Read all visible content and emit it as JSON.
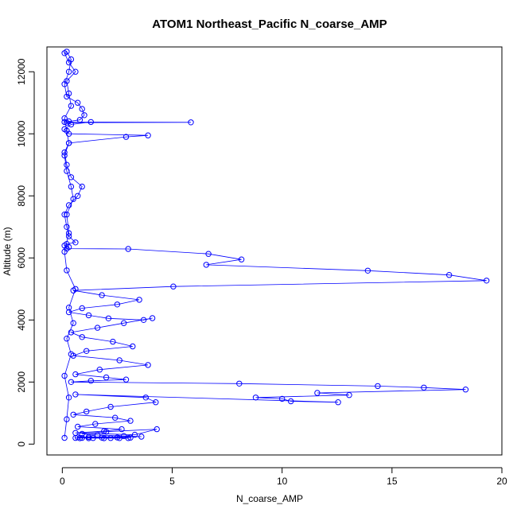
{
  "chart_data": {
    "type": "scatter",
    "title": "ATOM1 Northeast_Pacific N_coarse_AMP",
    "xlabel": "N_coarse_AMP",
    "ylabel": "Altitude (m)",
    "xlim": [
      -0.7,
      20.0
    ],
    "ylim": [
      -350,
      12800
    ],
    "xticks": [
      "0",
      "5",
      "10",
      "15",
      "20"
    ],
    "xtick_values": [
      0,
      5,
      10,
      15,
      20
    ],
    "yticks": [
      "0",
      "2000",
      "4000",
      "6000",
      "8000",
      "10000",
      "12000"
    ],
    "ytick_values": [
      0,
      2000,
      4000,
      6000,
      8000,
      10000,
      12000
    ],
    "grid": false,
    "legend": "none",
    "marker": "open-circle",
    "connected": true,
    "color": "#0000ff",
    "series": [
      {
        "x": [
          0.1,
          0.2,
          0.3,
          0.1,
          0.4,
          0.2,
          0.5,
          0.3,
          0.6,
          0.2,
          0.1,
          0.3,
          0.2,
          0.5,
          0.4,
          0.2,
          0.1,
          0.3,
          0.2,
          0.1,
          0.4,
          0.3,
          0.2,
          0.6,
          0.3,
          0.1,
          0.2,
          0.4,
          0.3,
          0.1,
          0.2,
          0.7,
          0.9,
          1.0,
          0.8,
          0.3,
          0.1,
          5.85,
          0.2,
          1.3,
          0.4,
          0.1,
          0.3,
          3.9,
          2.9,
          0.3,
          0.1,
          0.2,
          0.4,
          0.9,
          0.7,
          0.3,
          0.1,
          0.2,
          0.3,
          0.6,
          0.2,
          0.1,
          0.3,
          0.2,
          3.0,
          6.65,
          8.15,
          6.55,
          13.9,
          17.6,
          19.3,
          5.05,
          0.5,
          1.8,
          3.5,
          2.5,
          0.9,
          0.3,
          1.2,
          2.1,
          3.7,
          4.1,
          2.8,
          1.6,
          0.4,
          0.9,
          2.3,
          3.2,
          1.1,
          0.5,
          2.6,
          3.9,
          1.7,
          0.6,
          2.0,
          2.9,
          1.3,
          0.4,
          8.05,
          14.35,
          16.45,
          18.35,
          11.6,
          13.05,
          8.8,
          10.0,
          10.4,
          12.55,
          0.6,
          3.8,
          4.25,
          2.2,
          1.1,
          0.5,
          2.4,
          3.1,
          1.5,
          0.7,
          2.7,
          1.9,
          0.6,
          3.3,
          4.3,
          2.0,
          0.9,
          1.6,
          2.8,
          3.6,
          1.2,
          0.7,
          2.5,
          3.1,
          1.8,
          0.9,
          0.6,
          1.4,
          2.2,
          3.0,
          2.6,
          1.9,
          1.2,
          0.8
        ],
        "y": [
          200,
          800,
          1500,
          2200,
          2900,
          3400,
          3900,
          4400,
          5000,
          5600,
          6200,
          6800,
          7400,
          7900,
          8300,
          8800,
          9300,
          9700,
          10100,
          10500,
          10900,
          11300,
          11700,
          12000,
          12300,
          12600,
          12650,
          12400,
          12000,
          11600,
          11200,
          11000,
          10800,
          10600,
          10450,
          10400,
          10380,
          10370,
          10360,
          10380,
          10300,
          10150,
          10000,
          9950,
          9900,
          9700,
          9400,
          9000,
          8600,
          8300,
          8000,
          7700,
          7400,
          7000,
          6700,
          6500,
          6450,
          6400,
          6350,
          6300,
          6290,
          6130,
          5950,
          5780,
          5590,
          5450,
          5270,
          5080,
          4950,
          4800,
          4650,
          4500,
          4380,
          4250,
          4150,
          4050,
          4000,
          4060,
          3900,
          3750,
          3600,
          3450,
          3300,
          3150,
          3000,
          2850,
          2700,
          2550,
          2400,
          2250,
          2150,
          2080,
          2040,
          2000,
          1950,
          1870,
          1820,
          1760,
          1650,
          1580,
          1500,
          1460,
          1380,
          1350,
          1600,
          1500,
          1350,
          1200,
          1050,
          950,
          850,
          750,
          650,
          560,
          480,
          420,
          360,
          300,
          480,
          400,
          330,
          290,
          260,
          240,
          230,
          220,
          215,
          210,
          205,
          200,
          198,
          196,
          195,
          194,
          193,
          192,
          191,
          190
        ]
      }
    ]
  }
}
